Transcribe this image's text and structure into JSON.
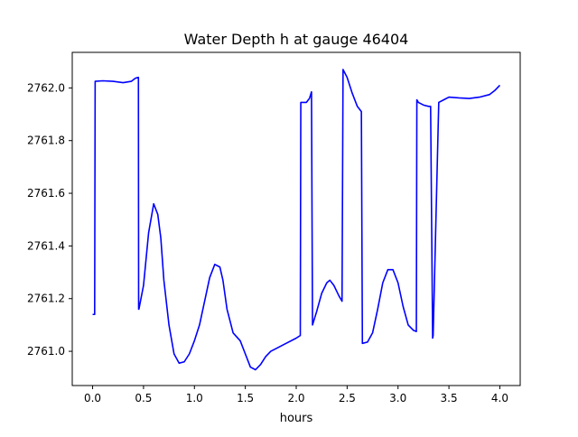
{
  "chart_data": {
    "type": "line",
    "title": "Water Depth h at gauge 46404",
    "xlabel": "hours",
    "ylabel": "",
    "xlim": [
      -0.2,
      4.2
    ],
    "ylim": [
      2760.87,
      2762.135
    ],
    "x_ticks": [
      0.0,
      0.5,
      1.0,
      1.5,
      2.0,
      2.5,
      3.0,
      3.5,
      4.0
    ],
    "x_tick_labels": [
      "0.0",
      "0.5",
      "1.0",
      "1.5",
      "2.0",
      "2.5",
      "3.0",
      "3.5",
      "4.0"
    ],
    "y_ticks": [
      2761.0,
      2761.2,
      2761.4,
      2761.6,
      2761.8,
      2762.0
    ],
    "y_tick_labels": [
      "2761.0",
      "2761.2",
      "2761.4",
      "2761.6",
      "2761.8",
      "2762.0"
    ],
    "grid": false,
    "series": [
      {
        "color": "#0000ff",
        "x": [
          0.0,
          0.02,
          0.025,
          0.1,
          0.2,
          0.3,
          0.38,
          0.42,
          0.45,
          0.452,
          0.455,
          0.5,
          0.55,
          0.6,
          0.64,
          0.67,
          0.7,
          0.75,
          0.8,
          0.85,
          0.9,
          0.95,
          1.0,
          1.05,
          1.1,
          1.15,
          1.2,
          1.25,
          1.28,
          1.32,
          1.38,
          1.45,
          1.5,
          1.55,
          1.6,
          1.65,
          1.7,
          1.75,
          1.8,
          1.9,
          2.0,
          2.04,
          2.045,
          2.1,
          2.13,
          2.15,
          2.16,
          2.2,
          2.25,
          2.3,
          2.33,
          2.37,
          2.42,
          2.45,
          2.46,
          2.5,
          2.55,
          2.6,
          2.64,
          2.65,
          2.7,
          2.75,
          2.8,
          2.85,
          2.9,
          2.95,
          3.0,
          3.05,
          3.1,
          3.15,
          3.18,
          3.185,
          3.2,
          3.25,
          3.3,
          3.32,
          3.34,
          3.345,
          3.4,
          3.45,
          3.5,
          3.6,
          3.7,
          3.8,
          3.9,
          3.95,
          4.0
        ],
        "y": [
          2761.14,
          2761.14,
          2762.025,
          2762.027,
          2762.025,
          2762.02,
          2762.025,
          2762.037,
          2762.04,
          2761.16,
          2761.16,
          2761.25,
          2761.45,
          2761.56,
          2761.52,
          2761.43,
          2761.27,
          2761.1,
          2760.99,
          2760.955,
          2760.96,
          2760.99,
          2761.04,
          2761.1,
          2761.19,
          2761.28,
          2761.33,
          2761.32,
          2761.27,
          2761.16,
          2761.07,
          2761.04,
          2760.99,
          2760.94,
          2760.93,
          2760.95,
          2760.98,
          2761.0,
          2761.01,
          2761.03,
          2761.05,
          2761.06,
          2761.945,
          2761.945,
          2761.96,
          2761.985,
          2761.1,
          2761.15,
          2761.22,
          2761.26,
          2761.27,
          2761.25,
          2761.21,
          2761.19,
          2762.07,
          2762.04,
          2761.98,
          2761.93,
          2761.91,
          2761.03,
          2761.035,
          2761.07,
          2761.16,
          2761.26,
          2761.31,
          2761.31,
          2761.26,
          2761.17,
          2761.1,
          2761.08,
          2761.075,
          2761.955,
          2761.945,
          2761.935,
          2761.93,
          2761.93,
          2761.05,
          2761.06,
          2761.945,
          2761.955,
          2761.965,
          2761.962,
          2761.96,
          2761.965,
          2761.975,
          2761.99,
          2762.01
        ]
      }
    ]
  }
}
